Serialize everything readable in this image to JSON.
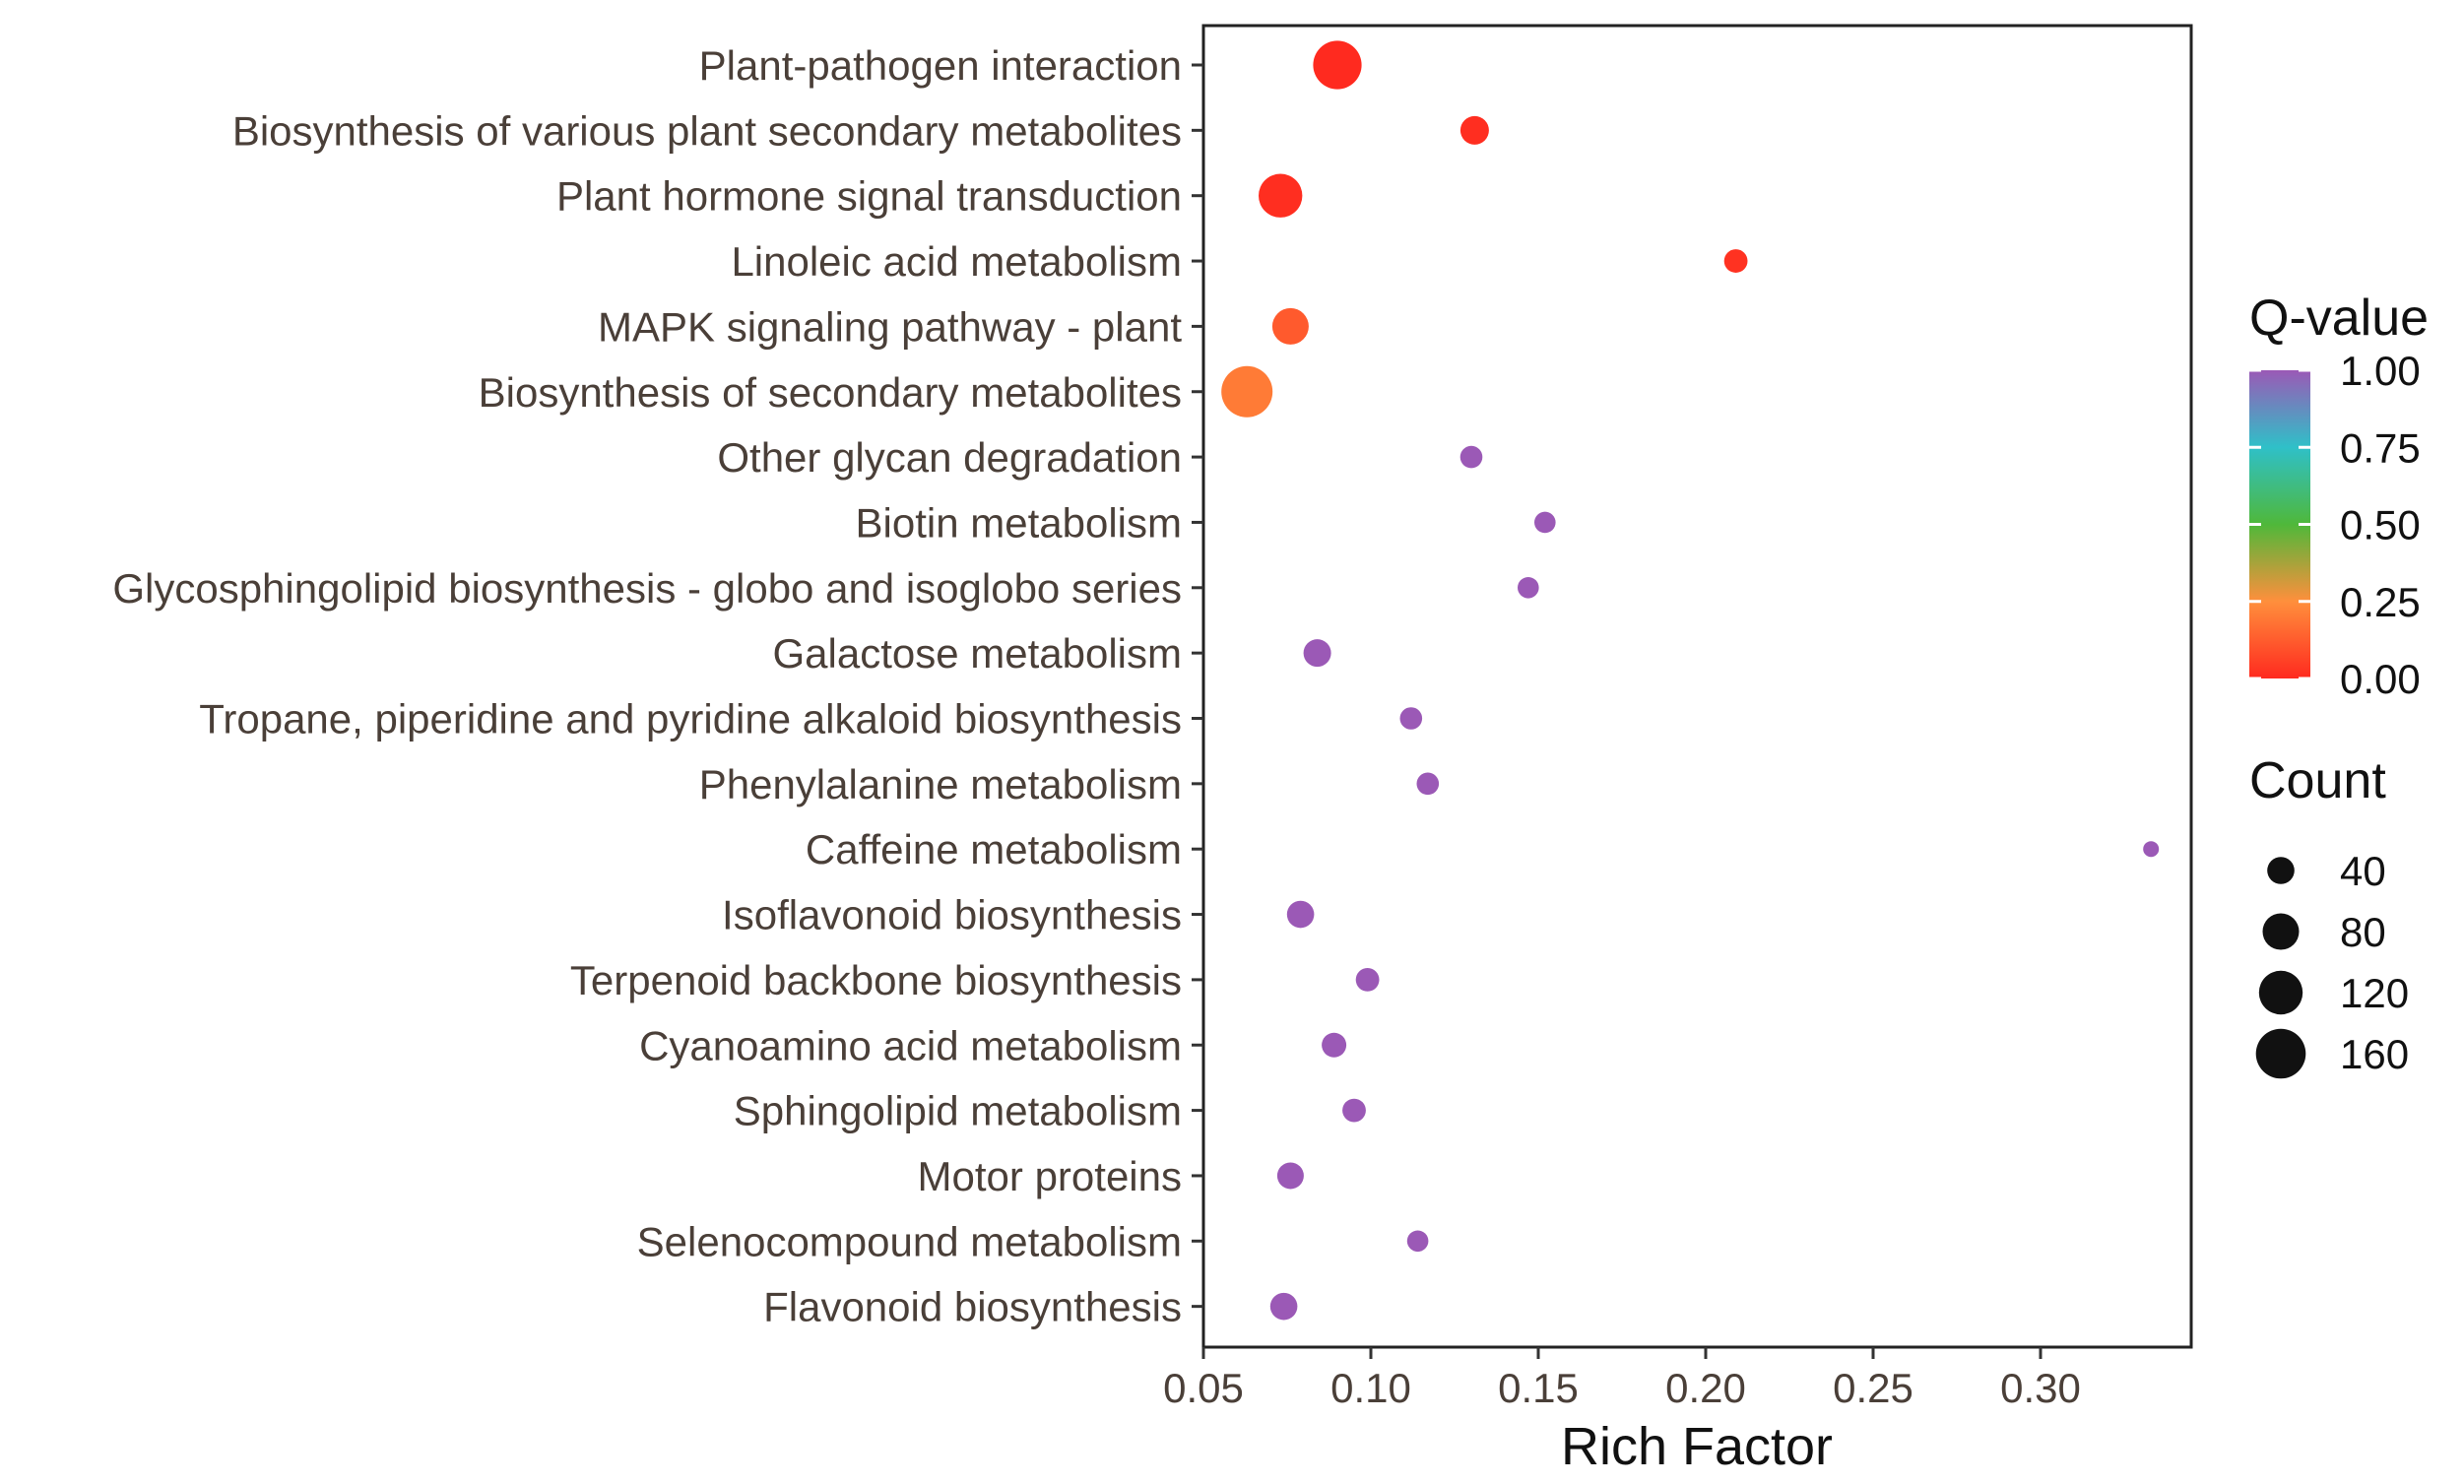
{
  "chart_data": {
    "type": "scatter",
    "title": "",
    "xlabel": "Rich Factor",
    "ylabel": "",
    "xlim": [
      0.05,
      0.345
    ],
    "xticks": [
      0.05,
      0.1,
      0.15,
      0.2,
      0.25,
      0.3
    ],
    "xtick_labels": [
      "0.05",
      "0.10",
      "0.15",
      "0.20",
      "0.25",
      "0.30"
    ],
    "categories": [
      "Plant-pathogen interaction",
      "Biosynthesis of various plant secondary metabolites",
      "Plant hormone signal transduction",
      "Linoleic acid metabolism",
      "MAPK signaling pathway - plant",
      "Biosynthesis of secondary metabolites",
      "Other glycan degradation",
      "Biotin metabolism",
      "Glycosphingolipid biosynthesis - globo and isoglobo series",
      "Galactose metabolism",
      "Tropane, piperidine and pyridine alkaloid biosynthesis",
      "Phenylalanine metabolism",
      "Caffeine metabolism",
      "Isoflavonoid biosynthesis",
      "Terpenoid backbone biosynthesis",
      "Cyanoamino acid metabolism",
      "Sphingolipid metabolism",
      "Motor proteins",
      "Selenocompound metabolism",
      "Flavonoid biosynthesis"
    ],
    "points": [
      {
        "pathway": "Plant-pathogen interaction",
        "rich_factor": 0.09,
        "q_value": 0.0,
        "count": 150
      },
      {
        "pathway": "Biosynthesis of various plant secondary metabolites",
        "rich_factor": 0.131,
        "q_value": 0.01,
        "count": 45
      },
      {
        "pathway": "Plant hormone signal transduction",
        "rich_factor": 0.073,
        "q_value": 0.01,
        "count": 120
      },
      {
        "pathway": "Linoleic acid metabolism",
        "rich_factor": 0.209,
        "q_value": 0.02,
        "count": 28
      },
      {
        "pathway": "MAPK signaling pathway - plant",
        "rich_factor": 0.076,
        "q_value": 0.12,
        "count": 80
      },
      {
        "pathway": "Biosynthesis of secondary metabolites",
        "rich_factor": 0.063,
        "q_value": 0.2,
        "count": 170
      },
      {
        "pathway": "Other glycan degradation",
        "rich_factor": 0.13,
        "q_value": 1.0,
        "count": 25
      },
      {
        "pathway": "Biotin metabolism",
        "rich_factor": 0.152,
        "q_value": 1.0,
        "count": 22
      },
      {
        "pathway": "Glycosphingolipid biosynthesis - globo and isoglobo series",
        "rich_factor": 0.147,
        "q_value": 1.0,
        "count": 22
      },
      {
        "pathway": "Galactose metabolism",
        "rich_factor": 0.084,
        "q_value": 1.0,
        "count": 42
      },
      {
        "pathway": "Tropane, piperidine and pyridine alkaloid biosynthesis",
        "rich_factor": 0.112,
        "q_value": 1.0,
        "count": 25
      },
      {
        "pathway": "Phenylalanine metabolism",
        "rich_factor": 0.117,
        "q_value": 1.0,
        "count": 25
      },
      {
        "pathway": "Caffeine metabolism",
        "rich_factor": 0.333,
        "q_value": 1.0,
        "count": 10
      },
      {
        "pathway": "Isoflavonoid biosynthesis",
        "rich_factor": 0.079,
        "q_value": 1.0,
        "count": 40
      },
      {
        "pathway": "Terpenoid backbone biosynthesis",
        "rich_factor": 0.099,
        "q_value": 1.0,
        "count": 28
      },
      {
        "pathway": "Cyanoamino acid metabolism",
        "rich_factor": 0.089,
        "q_value": 1.0,
        "count": 32
      },
      {
        "pathway": "Sphingolipid metabolism",
        "rich_factor": 0.095,
        "q_value": 1.0,
        "count": 28
      },
      {
        "pathway": "Motor proteins",
        "rich_factor": 0.076,
        "q_value": 1.0,
        "count": 38
      },
      {
        "pathway": "Selenocompound metabolism",
        "rich_factor": 0.114,
        "q_value": 1.0,
        "count": 22
      },
      {
        "pathway": "Flavonoid biosynthesis",
        "rich_factor": 0.074,
        "q_value": 1.0,
        "count": 40
      }
    ],
    "color_legend": {
      "title": "Q-value",
      "ticks": [
        1.0,
        0.75,
        0.5,
        0.25,
        0.0
      ],
      "tick_labels": [
        "1.00",
        "0.75",
        "0.50",
        "0.25",
        "0.00"
      ],
      "gradient_stops": [
        {
          "value": 0.0,
          "color": "#ff2a1f"
        },
        {
          "value": 0.25,
          "color": "#ff8f3c"
        },
        {
          "value": 0.5,
          "color": "#4fb83a"
        },
        {
          "value": 0.75,
          "color": "#2fc0c8"
        },
        {
          "value": 1.0,
          "color": "#9b59b6"
        }
      ]
    },
    "size_legend": {
      "title": "Count",
      "values": [
        40,
        80,
        120,
        160
      ],
      "labels": [
        "40",
        "80",
        "120",
        "160"
      ],
      "color": "#111111"
    },
    "size_range": {
      "count_min": 10,
      "count_max": 170
    },
    "grid": false,
    "legend_position": "right"
  }
}
